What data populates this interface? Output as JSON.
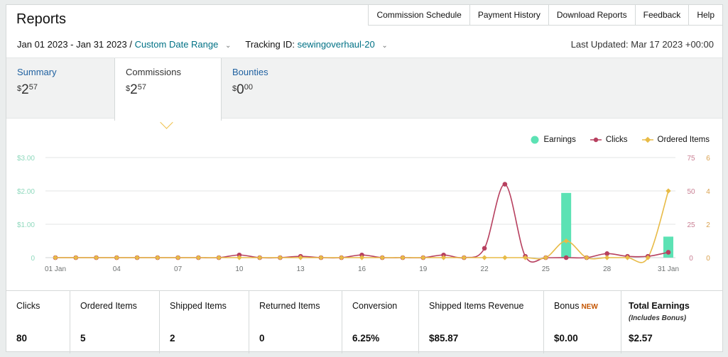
{
  "header": {
    "title": "Reports",
    "nav": [
      "Commission Schedule",
      "Payment History",
      "Download Reports",
      "Feedback",
      "Help"
    ]
  },
  "filters": {
    "date_range": "Jan 01 2023 - Jan 31 2023",
    "separator": "/",
    "range_type": "Custom Date Range",
    "tracking_label": "Tracking ID:",
    "tracking_id": "sewingoverhaul-20",
    "last_updated": "Last Updated: Mar 17 2023 +00:00"
  },
  "tabs": [
    {
      "label": "Summary",
      "currency": "$",
      "whole": "2",
      "fraction": "57"
    },
    {
      "label": "Commissions",
      "currency": "$",
      "whole": "2",
      "fraction": "57"
    },
    {
      "label": "Bounties",
      "currency": "$",
      "whole": "0",
      "fraction": "00"
    }
  ],
  "colors": {
    "earnings": "#5ce2b4",
    "clicks": "#b7405f",
    "ordered": "#e8bb47",
    "grid": "#e3e6e6",
    "link": "#007185"
  },
  "chart_data": {
    "type": "line",
    "legend": [
      "Earnings",
      "Clicks",
      "Ordered Items"
    ],
    "legend_position": "top-right",
    "x_tick_labels": [
      "01 Jan",
      "04",
      "07",
      "10",
      "13",
      "16",
      "19",
      "22",
      "25",
      "28",
      "31 Jan"
    ],
    "y_left_ticks": [
      "$3.00",
      "$2.00",
      "$1.00",
      "0"
    ],
    "y_mid_ticks": [
      "75",
      "50",
      "25",
      "0"
    ],
    "y_right_ticks": [
      "6",
      "4",
      "2",
      "0"
    ],
    "days": [
      1,
      2,
      3,
      4,
      5,
      6,
      7,
      8,
      9,
      10,
      11,
      12,
      13,
      14,
      15,
      16,
      17,
      18,
      19,
      20,
      21,
      22,
      23,
      24,
      25,
      26,
      27,
      28,
      29,
      30,
      31
    ],
    "series": [
      {
        "name": "Earnings",
        "type": "bar",
        "axis": "left",
        "ylim": [
          0,
          3
        ],
        "values": [
          0,
          0,
          0,
          0,
          0,
          0,
          0,
          0,
          0,
          0,
          0,
          0,
          0,
          0,
          0,
          0,
          0,
          0,
          0,
          0,
          0,
          0,
          0,
          0,
          0,
          1.94,
          0,
          0,
          0,
          0,
          0.63
        ]
      },
      {
        "name": "Clicks",
        "type": "line",
        "axis": "mid",
        "ylim": [
          0,
          75
        ],
        "values": [
          0,
          0,
          0,
          0,
          0,
          0,
          0,
          0,
          0,
          2,
          0,
          0,
          1,
          0,
          0,
          2,
          0,
          0,
          0,
          2,
          0,
          7,
          55,
          1,
          0,
          0,
          0,
          3,
          1,
          1,
          4
        ]
      },
      {
        "name": "Ordered Items",
        "type": "line",
        "axis": "right",
        "ylim": [
          0,
          6
        ],
        "values": [
          0,
          0,
          0,
          0,
          0,
          0,
          0,
          0,
          0,
          0,
          0,
          0,
          0,
          0,
          0,
          0,
          0,
          0,
          0,
          0,
          0,
          0,
          0,
          0,
          0,
          1,
          0,
          0,
          0,
          0,
          4
        ]
      }
    ]
  },
  "stats": [
    {
      "label": "Clicks",
      "value": "80"
    },
    {
      "label": "Ordered Items",
      "value": "5"
    },
    {
      "label": "Shipped Items",
      "value": "2"
    },
    {
      "label": "Returned Items",
      "value": "0"
    },
    {
      "label": "Conversion",
      "value": "6.25%"
    },
    {
      "label": "Shipped Items Revenue",
      "value": "$85.87"
    },
    {
      "label": "Bonus",
      "badge": "NEW",
      "value": "$0.00"
    },
    {
      "label": "Total Earnings",
      "sublabel": "(Includes Bonus)",
      "value": "$2.57"
    }
  ]
}
